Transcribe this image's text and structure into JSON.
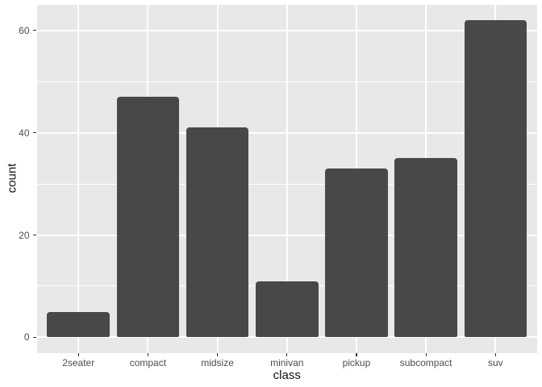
{
  "figure": {
    "background": "#ffffff",
    "panel_background": "#e8e8e8",
    "grid_color": "#ffffff",
    "bar_color": "#484848",
    "axis_text_color": "#4d4d4d",
    "axis_title_color": "#111111",
    "tick_color": "#333333"
  },
  "chart_data": {
    "type": "bar",
    "title": "",
    "xlabel": "class",
    "ylabel": "count",
    "categories": [
      "2seater",
      "compact",
      "midsize",
      "minivan",
      "pickup",
      "subcompact",
      "suv"
    ],
    "values": [
      5,
      47,
      41,
      11,
      33,
      35,
      62
    ],
    "ylim": [
      -3.1,
      65.1
    ],
    "yticks_major": [
      0,
      20,
      40,
      60
    ],
    "yticks_minor": [
      10,
      30,
      50
    ],
    "x_domain": [
      0.4,
      7.6
    ],
    "bar_width_units": 0.9,
    "grid": true,
    "legend": false,
    "theme": "ggplot2-grey"
  }
}
